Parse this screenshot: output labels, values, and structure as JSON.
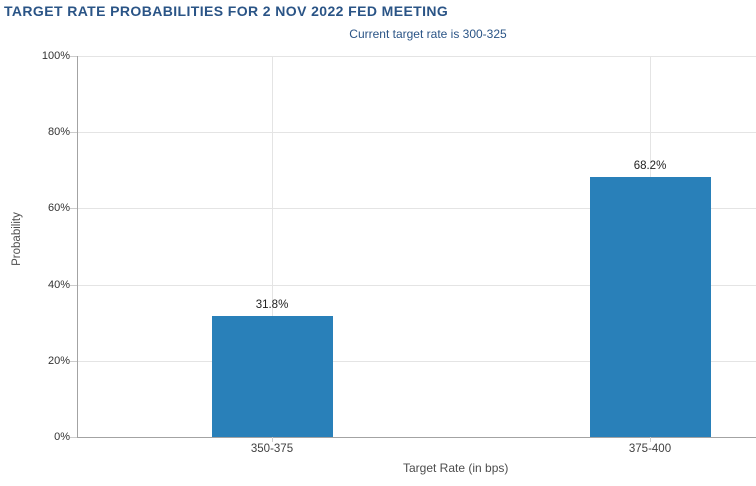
{
  "chart_data": {
    "type": "bar",
    "title": "TARGET RATE PROBABILITIES FOR 2 NOV 2022 FED MEETING",
    "subtitle": "Current target rate is 300-325",
    "xlabel": "Target Rate (in bps)",
    "ylabel": "Probability",
    "categories": [
      "350-375",
      "375-400"
    ],
    "values": [
      31.8,
      68.2
    ],
    "value_labels": [
      "31.8%",
      "68.2%"
    ],
    "ylim": [
      0,
      100
    ],
    "ytick_values": [
      0,
      20,
      40,
      60,
      80,
      100
    ],
    "ytick_labels": [
      "0%",
      "20%",
      "40%",
      "60%",
      "80%",
      "100%"
    ],
    "grid": true,
    "legend": false,
    "colors": {
      "bar": "#2980b9",
      "title": "#2a5486",
      "subtitle": "#2a5486",
      "gridline": "#e4e4e4",
      "axis_line": "#a3a3a3",
      "tick_mark": "#cccccc",
      "tick_text": "#333333",
      "axis_title_text": "#4d4d4d",
      "background": "#ffffff"
    }
  }
}
